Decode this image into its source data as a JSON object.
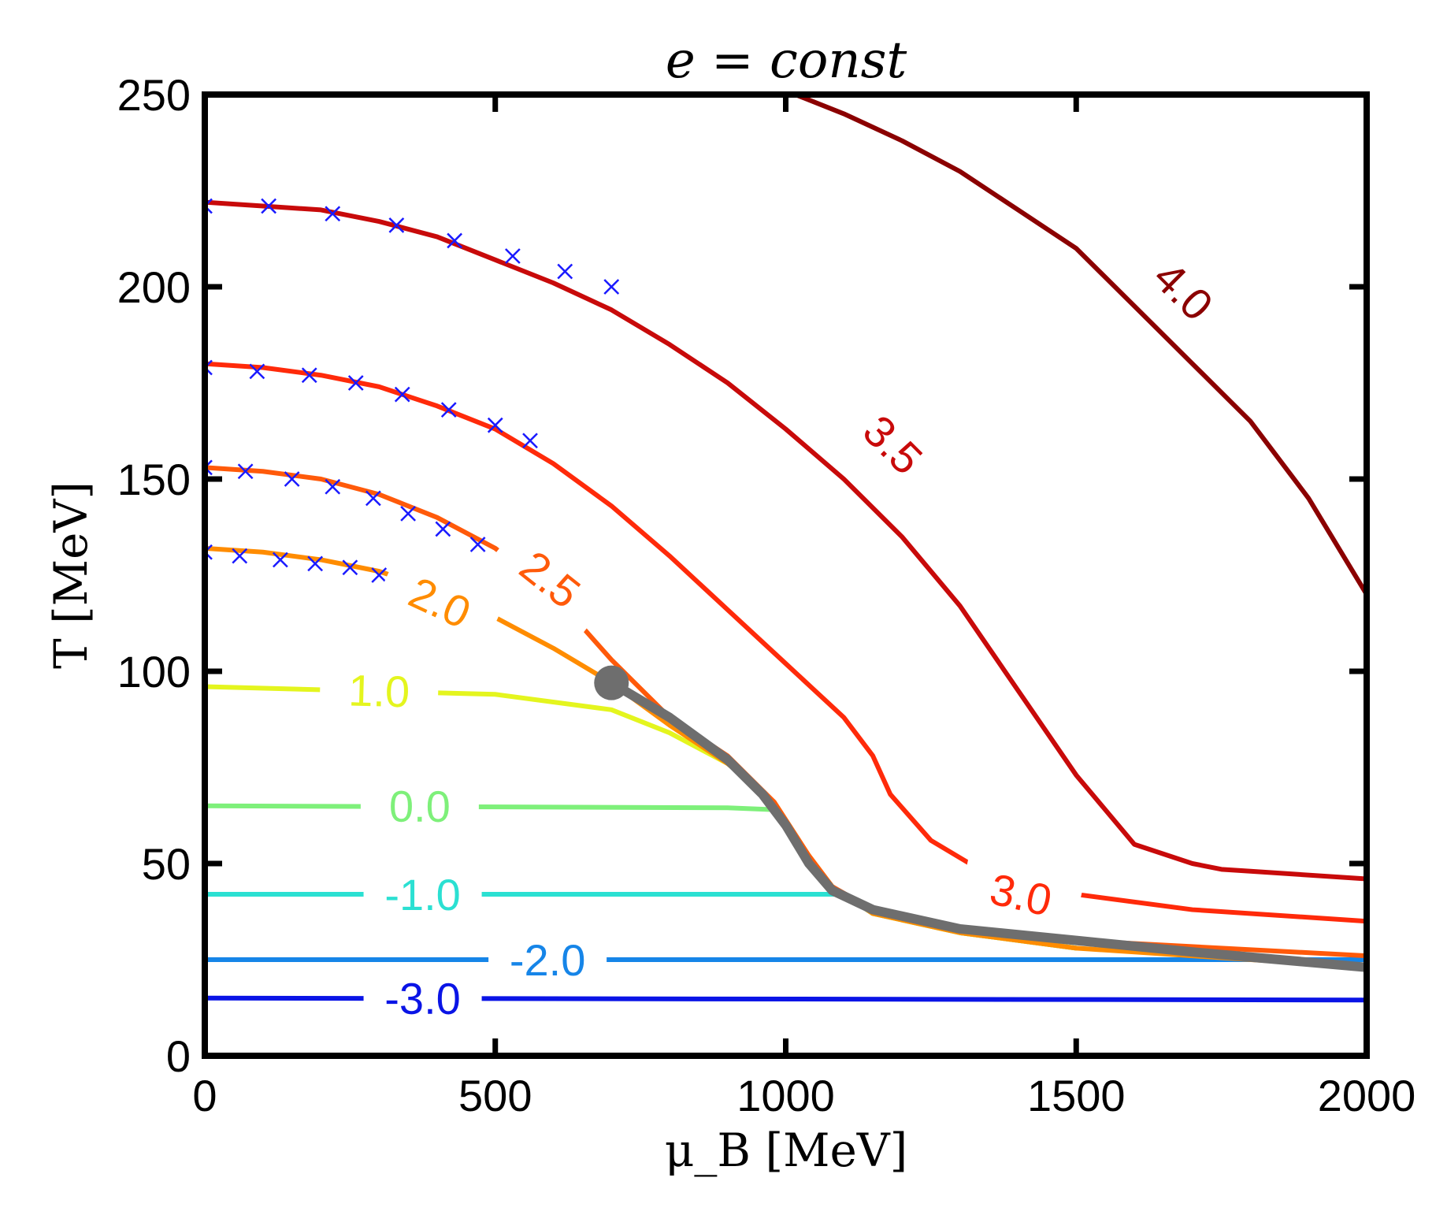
{
  "chart_data": {
    "type": "line",
    "title": "e = const",
    "xlabel": "μ_B [MeV]",
    "ylabel": "T [MeV]",
    "xlim": [
      0,
      2000
    ],
    "ylim": [
      0,
      250
    ],
    "xticks": [
      0,
      500,
      1000,
      1500,
      2000
    ],
    "yticks": [
      0,
      50,
      100,
      150,
      200,
      250
    ],
    "series": [
      {
        "name": "-3.0",
        "label": "-3.0",
        "color": "#0a14e6",
        "label_pos": [
          375,
          15
        ],
        "x": [
          0,
          2000
        ],
        "y": [
          15,
          14.5
        ]
      },
      {
        "name": "-2.0",
        "label": "-2.0",
        "color": "#1685e8",
        "label_pos": [
          590,
          25
        ],
        "x": [
          0,
          1700,
          2000
        ],
        "y": [
          25,
          25,
          25
        ]
      },
      {
        "name": "-1.0",
        "label": "-1.0",
        "color": "#2be0d2",
        "label_pos": [
          375,
          42
        ],
        "x": [
          0,
          1100,
          1150,
          1300,
          1500
        ],
        "y": [
          42,
          42,
          37,
          32,
          28
        ]
      },
      {
        "name": "0.0",
        "label": "0.0",
        "color": "#7ef07a",
        "label_pos": [
          370,
          65
        ],
        "x": [
          0,
          900,
          980,
          1040,
          1080,
          1150,
          1300,
          1500
        ],
        "y": [
          65,
          64.5,
          64,
          52,
          44,
          37,
          32,
          28
        ]
      },
      {
        "name": "1.0",
        "label": "1.0",
        "color": "#e4f51e",
        "label_pos": [
          300,
          95
        ],
        "x": [
          0,
          500,
          700,
          800,
          900,
          980,
          1040,
          1080,
          1150,
          1300,
          1500
        ],
        "y": [
          96,
          94,
          90,
          84,
          76,
          66,
          52,
          44,
          37,
          32,
          28
        ]
      },
      {
        "name": "2.0",
        "label": "2.0",
        "color": "#ff8c00",
        "label_pos": [
          405,
          118
        ],
        "x": [
          0,
          100,
          200,
          300,
          400,
          500,
          600,
          700,
          800,
          900,
          980,
          1040,
          1080,
          1150,
          1300,
          1500,
          2000
        ],
        "y": [
          132,
          131,
          129,
          126,
          121,
          114,
          106,
          97,
          86,
          76,
          66,
          52,
          44,
          37,
          32,
          28,
          23
        ]
      },
      {
        "name": "2.5",
        "label": "2.5",
        "color": "#ff5a0a",
        "label_pos": [
          595,
          124
        ],
        "x": [
          0,
          100,
          200,
          300,
          400,
          500,
          600,
          700,
          800,
          900,
          980,
          1040,
          1080,
          1150,
          1300,
          1500,
          2000
        ],
        "y": [
          153,
          152,
          150,
          146,
          140,
          132,
          120,
          103,
          88,
          78,
          66,
          52,
          44,
          38,
          33,
          30,
          26
        ]
      },
      {
        "name": "3.0",
        "label": "3.0",
        "color": "#ff2a0a",
        "label_pos": [
          1405,
          42
        ],
        "x": [
          0,
          100,
          200,
          300,
          400,
          500,
          600,
          700,
          800,
          900,
          1000,
          1050,
          1100,
          1150,
          1180,
          1250,
          1350,
          1500,
          1700,
          2000
        ],
        "y": [
          180,
          179,
          177,
          174,
          169,
          163,
          154,
          143,
          130,
          116,
          102,
          95,
          88,
          78,
          68,
          56,
          47,
          42,
          38,
          35
        ]
      },
      {
        "name": "3.5",
        "label": "3.5",
        "color": "#c80a0a",
        "label_pos": [
          1185,
          159
        ],
        "x": [
          0,
          100,
          200,
          300,
          400,
          500,
          600,
          700,
          800,
          900,
          1000,
          1100,
          1200,
          1300,
          1400,
          1500,
          1600,
          1700,
          1750,
          1800,
          2000
        ],
        "y": [
          222,
          221,
          220,
          217,
          213,
          207,
          201,
          194,
          185,
          175,
          163,
          150,
          135,
          117,
          95,
          73,
          55,
          50,
          48.5,
          48,
          46
        ]
      },
      {
        "name": "4.0",
        "label": "4.0",
        "color": "#8b0000",
        "label_pos": [
          1685,
          199
        ],
        "x": [
          1000,
          1100,
          1200,
          1300,
          1400,
          1500,
          1600,
          1700,
          1800,
          1900,
          2000
        ],
        "y": [
          251,
          245,
          238,
          230,
          220,
          210,
          195,
          180,
          165,
          145,
          120
        ]
      }
    ],
    "markers_x": [
      {
        "name": "x-markers-e3.5",
        "color": "#1a1aff",
        "points": [
          [
            0,
            221
          ],
          [
            110,
            221
          ],
          [
            220,
            219
          ],
          [
            330,
            216
          ],
          [
            430,
            212
          ],
          [
            530,
            208
          ],
          [
            620,
            204
          ],
          [
            700,
            200
          ]
        ]
      },
      {
        "name": "x-markers-e3.0",
        "color": "#1a1aff",
        "points": [
          [
            0,
            179
          ],
          [
            90,
            178
          ],
          [
            180,
            177
          ],
          [
            260,
            175
          ],
          [
            340,
            172
          ],
          [
            420,
            168
          ],
          [
            500,
            164
          ],
          [
            560,
            160
          ]
        ]
      },
      {
        "name": "x-markers-e2.5",
        "color": "#1a1aff",
        "points": [
          [
            0,
            153
          ],
          [
            70,
            152
          ],
          [
            150,
            150
          ],
          [
            220,
            148
          ],
          [
            290,
            145
          ],
          [
            350,
            141
          ],
          [
            410,
            137
          ],
          [
            470,
            133
          ]
        ]
      },
      {
        "name": "x-markers-e2.0",
        "color": "#1a1aff",
        "points": [
          [
            0,
            131
          ],
          [
            60,
            130
          ],
          [
            130,
            129
          ],
          [
            190,
            128
          ],
          [
            250,
            127
          ],
          [
            300,
            125
          ]
        ]
      }
    ],
    "phase_line": {
      "name": "first-order-transition",
      "color": "#6e6e6e",
      "x": [
        700,
        800,
        900,
        960,
        1000,
        1040,
        1080,
        1150,
        1300,
        1500,
        1700,
        2000
      ],
      "y": [
        97,
        88,
        77,
        68,
        60,
        50,
        43,
        38,
        33,
        30,
        27,
        23
      ]
    },
    "critical_point": {
      "name": "critical-point",
      "color": "#6e6e6e",
      "x": 700,
      "y": 97
    }
  }
}
